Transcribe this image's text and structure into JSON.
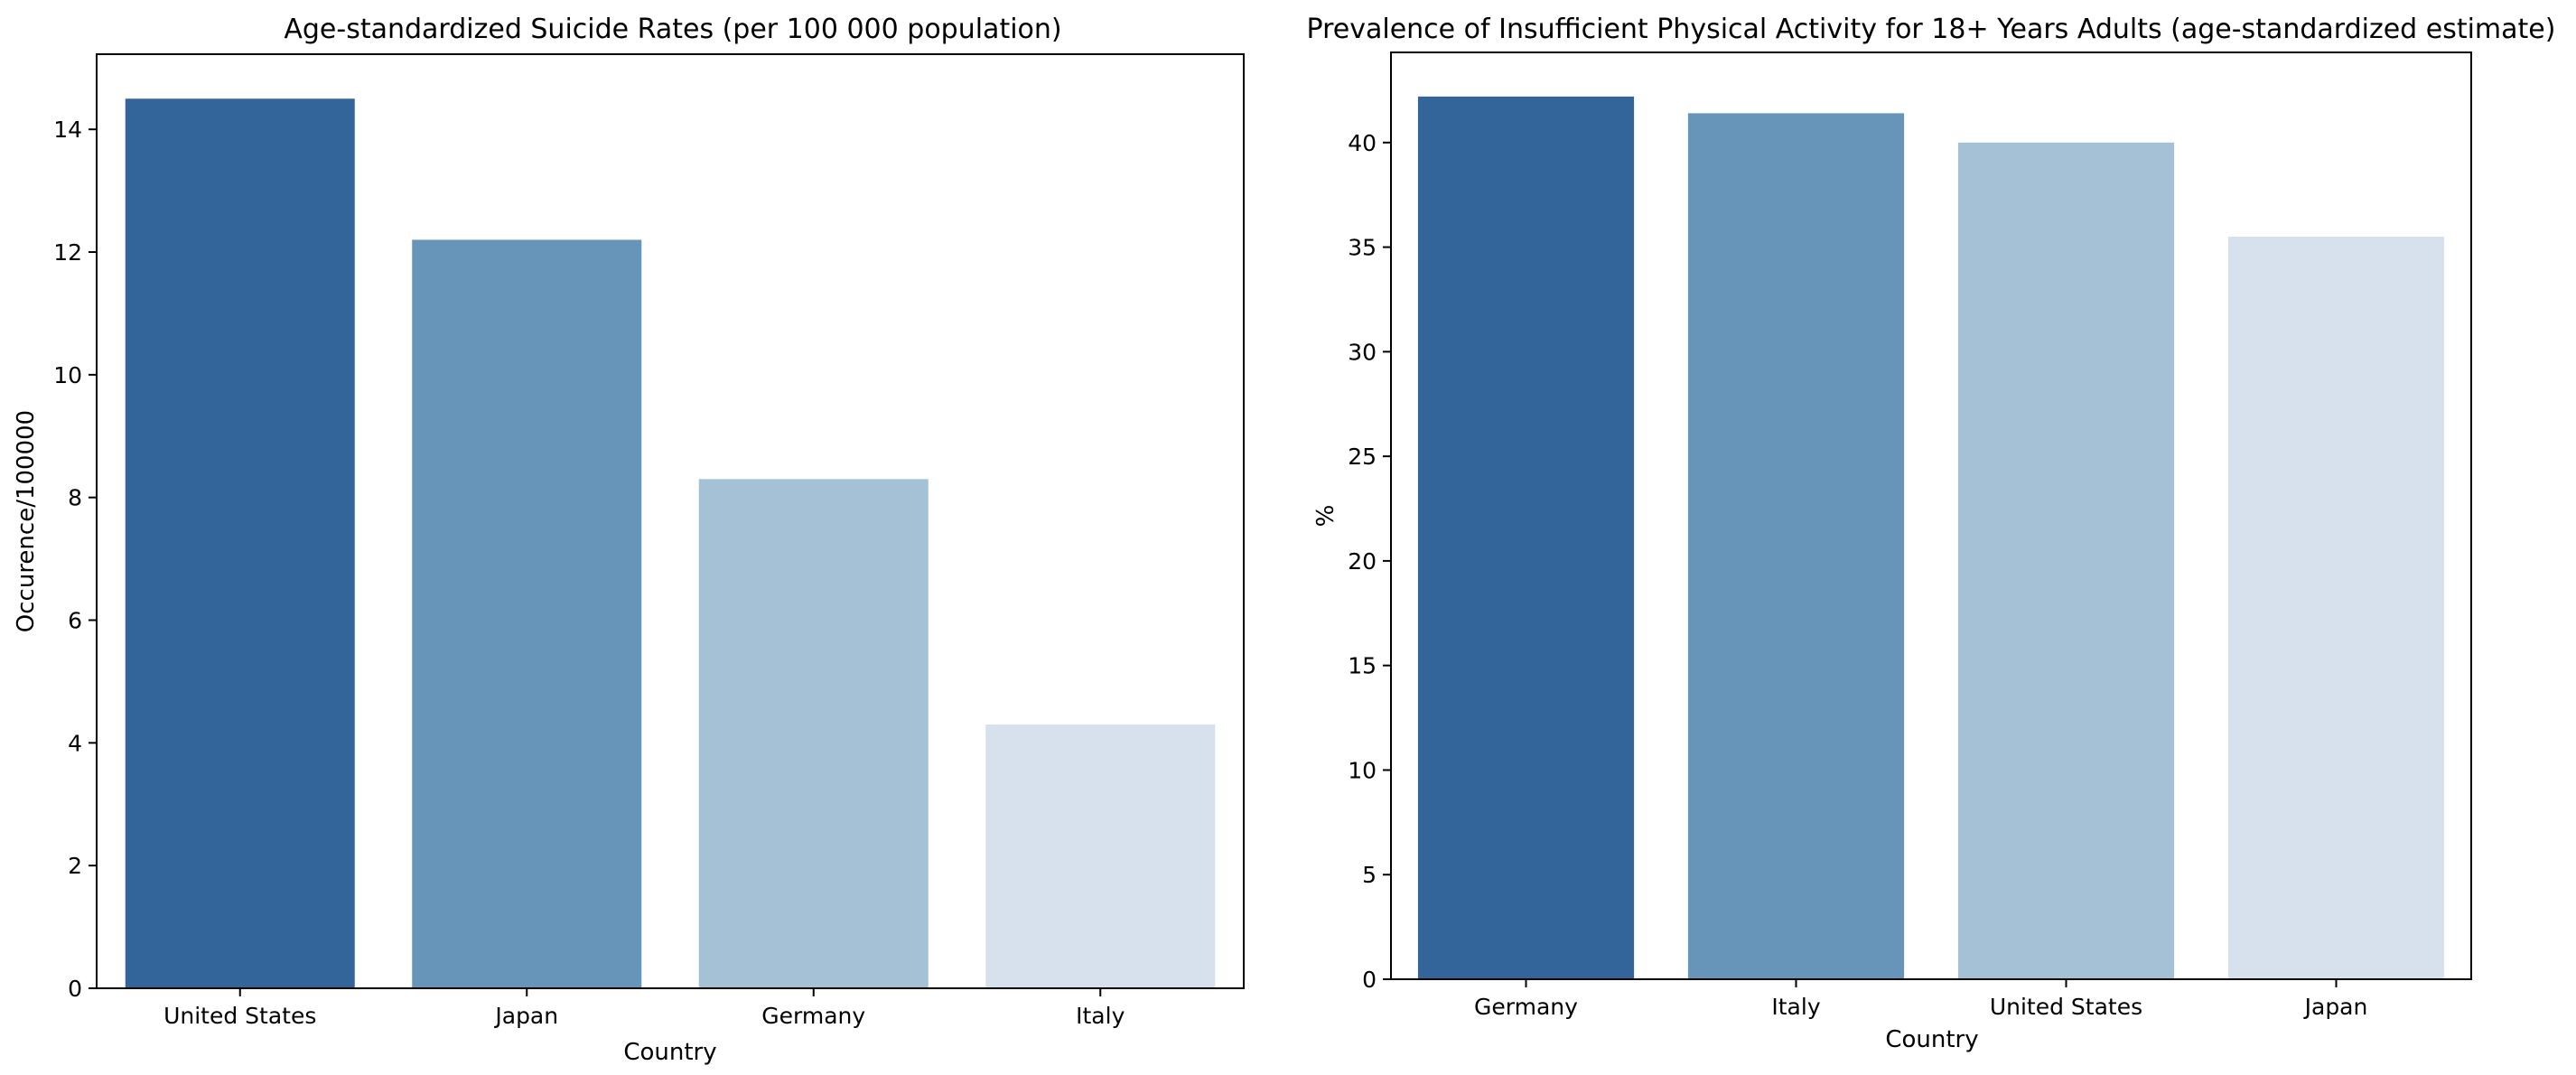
{
  "chart_data": [
    {
      "type": "bar",
      "title": "Age-standardized Suicide Rates (per 100 000 population)",
      "xlabel": "Country",
      "ylabel": "Occurence/100000",
      "categories": [
        "United States",
        "Japan",
        "Germany",
        "Italy"
      ],
      "values": [
        14.5,
        12.2,
        8.3,
        4.3
      ],
      "ylim": [
        0,
        15.225
      ],
      "yticks": [
        0,
        2,
        4,
        6,
        8,
        10,
        12,
        14
      ],
      "colors": [
        "#34659a",
        "#6794b9",
        "#a4c1d5",
        "#d6e1ed"
      ],
      "grid": false
    },
    {
      "type": "bar",
      "title": "Prevalence of Insufficient Physical Activity for 18+ Years Adults (age-standardized estimate)",
      "xlabel": "Country",
      "ylabel": "%",
      "categories": [
        "Germany",
        "Italy",
        "United States",
        "Japan"
      ],
      "values": [
        42.2,
        41.4,
        40.0,
        35.5
      ],
      "ylim": [
        0,
        44.31
      ],
      "yticks": [
        0,
        5,
        10,
        15,
        20,
        25,
        30,
        35,
        40
      ],
      "colors": [
        "#34659a",
        "#6794b9",
        "#a4c1d5",
        "#d6e1ed"
      ],
      "grid": false
    }
  ]
}
